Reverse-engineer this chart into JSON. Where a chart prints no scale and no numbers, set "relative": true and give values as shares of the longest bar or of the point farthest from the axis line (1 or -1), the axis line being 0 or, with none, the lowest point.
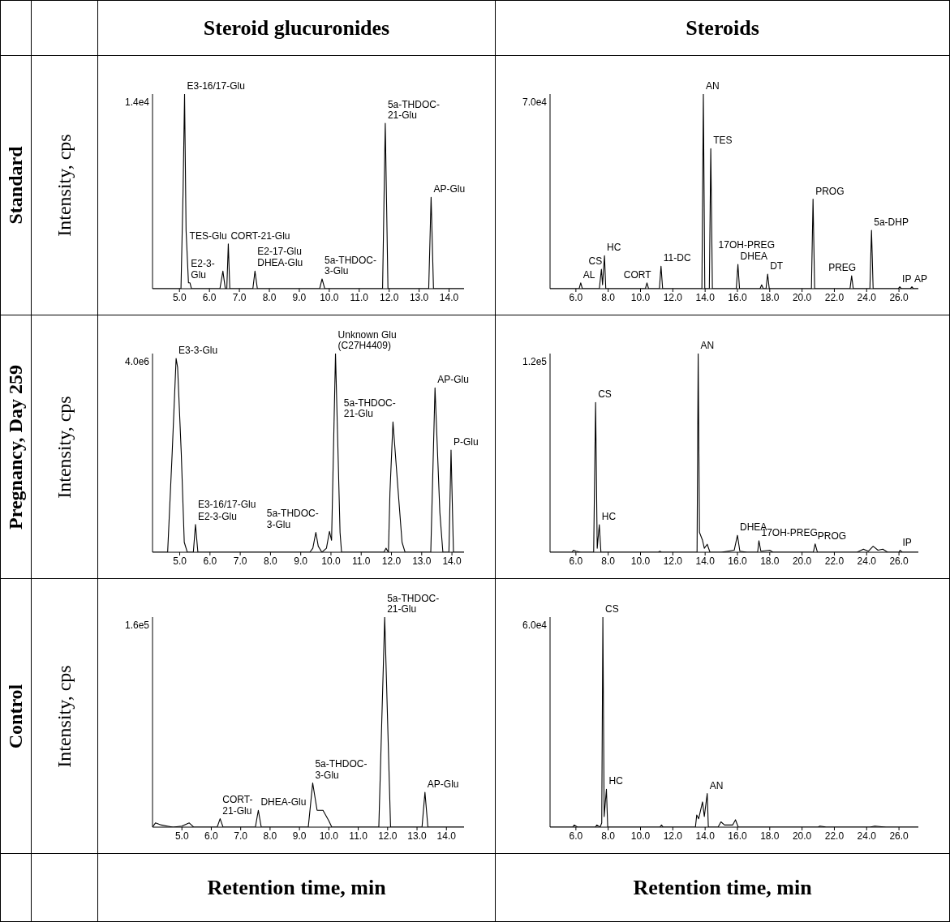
{
  "chart_data": [
    {
      "type": "line",
      "title": "Steroid glucuronides",
      "ylabel": "Intensity, cps",
      "relative": true,
      "xlim": [
        4.1,
        14.5
      ],
      "xticks": [
        {
          "value": 5,
          "label": "5.0"
        },
        {
          "value": 6,
          "label": "6.0"
        },
        {
          "value": 7,
          "label": "7.0"
        },
        {
          "value": 8,
          "label": "8.0"
        },
        {
          "value": 9,
          "label": "9.0"
        },
        {
          "value": 10,
          "label": "10.0"
        },
        {
          "value": 11,
          "label": "11.0"
        },
        {
          "value": 12,
          "label": "12.0"
        },
        {
          "value": 13,
          "label": "13.0"
        },
        {
          "value": 14,
          "label": "14.0"
        }
      ],
      "series": [
        {
          "color": "#000000",
          "x": [
            4.1,
            5.05,
            5.12,
            5.17,
            5.22,
            5.3,
            5.35,
            5.4,
            6.35,
            6.45,
            6.53,
            6.58,
            6.63,
            6.68,
            7.45,
            7.52,
            7.6,
            9.68,
            9.76,
            9.85,
            11.78,
            11.87,
            11.96,
            13.32,
            13.4,
            13.48,
            14.5
          ],
          "values": [
            0,
            0,
            0.5,
            1,
            0.3,
            0.03,
            0.03,
            0,
            0,
            0.09,
            0,
            0,
            0.23,
            0,
            0,
            0.09,
            0,
            0,
            0.05,
            0,
            0,
            0.85,
            0,
            0,
            0.47,
            0,
            0
          ]
        }
      ],
      "annotations": [
        "1.4e4",
        "Standard",
        {
          "text": "E3-16/17-Glu",
          "x": 5.17,
          "y": 1
        },
        {
          "text": "5a-THDOC-\n21-Glu",
          "x": 11.87,
          "y": 0.85
        },
        {
          "text": "AP-Glu",
          "x": 13.4,
          "y": 0.47
        },
        {
          "text": "CORT-21-Glu",
          "x": 6.63,
          "y": 0.23
        },
        {
          "text": "TES-Glu",
          "x": 6.63,
          "y": 0.23
        },
        {
          "text": "E2-3-\nGlu",
          "x": 5.3,
          "y": 0.03
        },
        {
          "text": "DHEA-Glu",
          "x": 7.52,
          "y": 0.09
        },
        {
          "text": "E2-17-Glu",
          "x": 7.52,
          "y": 0.09
        },
        {
          "text": "5a-THDOC-\n3-Glu",
          "x": 9.76,
          "y": 0.05
        }
      ]
    },
    {
      "type": "line",
      "title": "Steroids",
      "relative": true,
      "xlim": [
        4.4,
        27.2
      ],
      "xticks": [
        {
          "value": 6,
          "label": "6.0"
        },
        {
          "value": 8,
          "label": "8.0"
        },
        {
          "value": 10,
          "label": "10.0"
        },
        {
          "value": 12,
          "label": "12.0"
        },
        {
          "value": 14,
          "label": "14.0"
        },
        {
          "value": 16,
          "label": "16.0"
        },
        {
          "value": 18,
          "label": "18.0"
        },
        {
          "value": 20,
          "label": "20.0"
        },
        {
          "value": 22,
          "label": "22.0"
        },
        {
          "value": 24,
          "label": "24.0"
        },
        {
          "value": 26,
          "label": "26.0"
        }
      ],
      "series": [
        {
          "color": "#000000",
          "x": [
            4.4,
            6.2,
            6.3,
            6.4,
            7.45,
            7.58,
            7.65,
            7.77,
            7.85,
            10.3,
            10.4,
            10.5,
            11.17,
            11.27,
            11.37,
            13.8,
            13.89,
            13.98,
            14.26,
            14.35,
            14.45,
            15.93,
            16.03,
            16.13,
            17.4,
            17.5,
            17.6,
            17.77,
            17.87,
            17.97,
            20.58,
            20.68,
            20.78,
            22.97,
            23.07,
            23.17,
            24.2,
            24.3,
            24.4,
            25.95,
            26.05,
            26.15,
            26.7,
            26.8,
            26.9,
            27.2
          ],
          "values": [
            0,
            0,
            0.03,
            0,
            0,
            0.1,
            0.02,
            0.17,
            0,
            0,
            0.03,
            0,
            0,
            0.115,
            0,
            0,
            1,
            0,
            0,
            0.72,
            0,
            0,
            0.125,
            0,
            0,
            0.02,
            0,
            0,
            0.075,
            0,
            0,
            0.46,
            0,
            0,
            0.066,
            0,
            0,
            0.3,
            0,
            0,
            0.01,
            0,
            0,
            0.01,
            0,
            0
          ]
        }
      ],
      "annotations": [
        "7.0e4",
        {
          "text": "AN",
          "x": 13.89,
          "y": 1
        },
        {
          "text": "TES",
          "x": 14.35,
          "y": 0.72
        },
        {
          "text": "PROG",
          "x": 20.68,
          "y": 0.46
        },
        {
          "text": "5a-DHP",
          "x": 24.3,
          "y": 0.3
        },
        {
          "text": "DHEA",
          "x": 16.03,
          "y": 0.125
        },
        {
          "text": "DT",
          "x": 17.87,
          "y": 0.075
        },
        {
          "text": "17OH-PREG",
          "x": 17.87,
          "y": 0.075
        },
        {
          "text": "PREG",
          "x": 23.07,
          "y": 0.066
        },
        {
          "text": "IP",
          "x": 26.05,
          "y": 0.01
        },
        {
          "text": "AP",
          "x": 26.8,
          "y": 0.01
        },
        {
          "text": "CS",
          "x": 7.58,
          "y": 0.1
        },
        {
          "text": "HC",
          "x": 7.77,
          "y": 0.17
        },
        {
          "text": "AL",
          "x": 6.3,
          "y": 0.03
        },
        {
          "text": "CORT",
          "x": 10.4,
          "y": 0.03
        },
        {
          "text": "11-DC",
          "x": 11.27,
          "y": 0.115
        }
      ]
    },
    {
      "type": "line",
      "ylabel": "Intensity, cps",
      "relative": true,
      "xlim": [
        4.1,
        14.4
      ],
      "xticks": [
        {
          "value": 5,
          "label": "5.0"
        },
        {
          "value": 6,
          "label": "6.0"
        },
        {
          "value": 7,
          "label": "7.0"
        },
        {
          "value": 8,
          "label": "8.0"
        },
        {
          "value": 9,
          "label": "9.0"
        },
        {
          "value": 10,
          "label": "10.0"
        },
        {
          "value": 11,
          "label": "11.0"
        },
        {
          "value": 12,
          "label": "12.0"
        },
        {
          "value": 13,
          "label": "13.0"
        },
        {
          "value": 14,
          "label": "14.0"
        }
      ],
      "series": [
        {
          "color": "#000000",
          "x": [
            4.1,
            4.6,
            4.75,
            4.88,
            4.93,
            5.05,
            5.15,
            5.25,
            5.45,
            5.52,
            5.6,
            9.3,
            9.4,
            9.5,
            9.58,
            9.7,
            9.85,
            9.95,
            10.02,
            10.15,
            10.3,
            10.35,
            11.75,
            11.82,
            11.9,
            11.95,
            12.05,
            12.2,
            12.35,
            12.45,
            13.3,
            13.44,
            13.6,
            13.7,
            13.9,
            13.97,
            14.05,
            14.4
          ],
          "values": [
            0,
            0,
            0.5,
            0.975,
            0.93,
            0.5,
            0.05,
            0,
            0,
            0.14,
            0,
            0,
            0.02,
            0.1,
            0.03,
            0,
            0.02,
            0.105,
            0.06,
            1,
            0.1,
            0,
            0,
            0.02,
            0,
            0.3,
            0.656,
            0.35,
            0.05,
            0,
            0,
            0.827,
            0.2,
            0,
            0,
            0.514,
            0,
            0
          ]
        }
      ],
      "annotations": [
        "4.0e6",
        "Pregnancy, Day 259",
        {
          "text": "E3-3-Glu",
          "x": 4.88,
          "y": 0.975
        },
        {
          "text": "Unknown Glu\n(C27H4409)",
          "x": 10.15,
          "y": 1
        },
        {
          "text": "AP-Glu",
          "x": 13.44,
          "y": 0.827
        },
        {
          "text": "5a-THDOC-\n21-Glu",
          "x": 12.05,
          "y": 0.656
        },
        {
          "text": "P-Glu",
          "x": 13.97,
          "y": 0.514
        },
        {
          "text": "E2-3-Glu",
          "x": 5.52,
          "y": 0.14
        },
        {
          "text": "E3-16/17-Glu",
          "x": 5.52,
          "y": 0.14
        },
        {
          "text": "5a-THDOC-\n3-Glu",
          "x": 9.5,
          "y": 0.1
        }
      ]
    },
    {
      "type": "line",
      "relative": true,
      "xlim": [
        4.4,
        27.2
      ],
      "xticks": [
        {
          "value": 6,
          "label": "6.0"
        },
        {
          "value": 8,
          "label": "8.0"
        },
        {
          "value": 10,
          "label": "10.0"
        },
        {
          "value": 12,
          "label": "12.0"
        },
        {
          "value": 14,
          "label": "14.0"
        },
        {
          "value": 16,
          "label": "16.0"
        },
        {
          "value": 18,
          "label": "18.0"
        },
        {
          "value": 20,
          "label": "20.0"
        },
        {
          "value": 22,
          "label": "22.0"
        },
        {
          "value": 24,
          "label": "24.0"
        },
        {
          "value": 26,
          "label": "26.0"
        }
      ],
      "series": [
        {
          "color": "#000000",
          "x": [
            4.4,
            5.75,
            5.85,
            6.0,
            6.3,
            7.1,
            7.22,
            7.32,
            7.45,
            7.55,
            11.1,
            11.2,
            11.3,
            13.5,
            13.57,
            13.65,
            13.84,
            13.95,
            14.13,
            14.3,
            15.0,
            15.8,
            16.0,
            16.15,
            16.6,
            17.25,
            17.33,
            17.45,
            18.0,
            18.2,
            20.7,
            20.81,
            20.95,
            23.4,
            23.8,
            24.1,
            24.4,
            24.7,
            25.0,
            25.3,
            26.0,
            26.07,
            26.2,
            27.2
          ],
          "values": [
            0,
            0,
            0.01,
            0.005,
            0,
            0,
            0.754,
            0.02,
            0.139,
            0,
            0,
            0.005,
            0,
            0,
            1,
            0.1,
            0.06,
            0.02,
            0.04,
            0,
            0,
            0.01,
            0.085,
            0.005,
            0,
            0,
            0.058,
            0.005,
            0.01,
            0,
            0,
            0.042,
            0,
            0,
            0.015,
            0.005,
            0.03,
            0.01,
            0.015,
            0,
            0,
            0.01,
            0,
            0
          ]
        }
      ],
      "annotations": [
        "1.2e5",
        {
          "text": "AN",
          "x": 13.57,
          "y": 1
        },
        {
          "text": "CS",
          "x": 7.22,
          "y": 0.754
        },
        {
          "text": "HC",
          "x": 7.45,
          "y": 0.139
        },
        {
          "text": "DHEA",
          "x": 16.0,
          "y": 0.085
        },
        {
          "text": "17OH-PREG",
          "x": 17.33,
          "y": 0.058
        },
        {
          "text": "PROG",
          "x": 20.81,
          "y": 0.042
        },
        {
          "text": "IP",
          "x": 26.07,
          "y": 0.01
        }
      ]
    },
    {
      "type": "line",
      "ylabel": "Intensity, cps",
      "xlabel": "Retention time, min",
      "relative": true,
      "xlim": [
        4.0,
        14.6
      ],
      "xticks": [
        {
          "value": 5,
          "label": "5.0"
        },
        {
          "value": 6,
          "label": "6.0"
        },
        {
          "value": 7,
          "label": "7.0"
        },
        {
          "value": 8,
          "label": "8.0"
        },
        {
          "value": 9,
          "label": "9.0"
        },
        {
          "value": 10,
          "label": "10.0"
        },
        {
          "value": 11,
          "label": "11.0"
        },
        {
          "value": 12,
          "label": "12.0"
        },
        {
          "value": 13,
          "label": "13.0"
        },
        {
          "value": 14,
          "label": "14.0"
        }
      ],
      "series": [
        {
          "color": "#000000",
          "x": [
            4.0,
            4.1,
            4.3,
            4.5,
            4.7,
            5.0,
            5.25,
            5.4,
            6.2,
            6.3,
            6.4,
            7.5,
            7.6,
            7.7,
            9.3,
            9.45,
            9.6,
            9.8,
            10.0,
            10.1,
            11.7,
            11.9,
            12.1,
            13.17,
            13.27,
            13.37,
            14.6
          ],
          "values": [
            0,
            0.02,
            0.01,
            0.005,
            0,
            0.005,
            0.02,
            0,
            0,
            0.04,
            0,
            0,
            0.08,
            0,
            0,
            0.21,
            0.08,
            0.08,
            0.03,
            0,
            0,
            1,
            0,
            0,
            0.166,
            0,
            0
          ]
        }
      ],
      "annotations": [
        "1.6e5",
        "Control",
        {
          "text": "5a-THDOC-\n21-Glu",
          "x": 11.9,
          "y": 1
        },
        {
          "text": "5a-THDOC-\n3-Glu",
          "x": 9.45,
          "y": 0.21
        },
        {
          "text": "AP-Glu",
          "x": 13.27,
          "y": 0.166
        },
        {
          "text": "CORT-\n21-Glu",
          "x": 6.3,
          "y": 0.04
        },
        {
          "text": "DHEA-Glu",
          "x": 7.6,
          "y": 0.08
        }
      ]
    },
    {
      "type": "line",
      "xlabel": "Retention time, min",
      "relative": true,
      "xlim": [
        4.4,
        27.2
      ],
      "xticks": [
        {
          "value": 6,
          "label": "6.0"
        },
        {
          "value": 8,
          "label": "8.0"
        },
        {
          "value": 10,
          "label": "10.0"
        },
        {
          "value": 12,
          "label": "12.0"
        },
        {
          "value": 14,
          "label": "14.0"
        },
        {
          "value": 16,
          "label": "16.0"
        },
        {
          "value": 18,
          "label": "18.0"
        },
        {
          "value": 20,
          "label": "20.0"
        },
        {
          "value": 22,
          "label": "22.0"
        },
        {
          "value": 24,
          "label": "24.0"
        },
        {
          "value": 26,
          "label": "26.0"
        }
      ],
      "series": [
        {
          "color": "#000000",
          "x": [
            4.4,
            5.8,
            5.9,
            6.1,
            7.2,
            7.3,
            7.5,
            7.6,
            7.67,
            7.75,
            7.89,
            7.97,
            11.2,
            11.3,
            11.4,
            13.4,
            13.48,
            13.6,
            13.84,
            13.95,
            14.13,
            14.2,
            14.8,
            14.98,
            15.2,
            15.7,
            15.88,
            16.05,
            21.0,
            21.1,
            21.5,
            24.2,
            24.5,
            25.2,
            27.2
          ],
          "values": [
            0,
            0,
            0.01,
            0,
            0,
            0.01,
            0,
            0.02,
            1,
            0.05,
            0.18,
            0,
            0,
            0.01,
            0,
            0,
            0.058,
            0.04,
            0.12,
            0.05,
            0.16,
            0,
            0,
            0.025,
            0.01,
            0.01,
            0.035,
            0,
            0,
            0.005,
            0,
            0,
            0.005,
            0,
            0
          ]
        }
      ],
      "annotations": [
        "6.0e4",
        {
          "text": "CS",
          "x": 7.67,
          "y": 1
        },
        {
          "text": "HC",
          "x": 7.89,
          "y": 0.18
        },
        {
          "text": "AN",
          "x": 14.13,
          "y": 0.16
        }
      ]
    }
  ]
}
